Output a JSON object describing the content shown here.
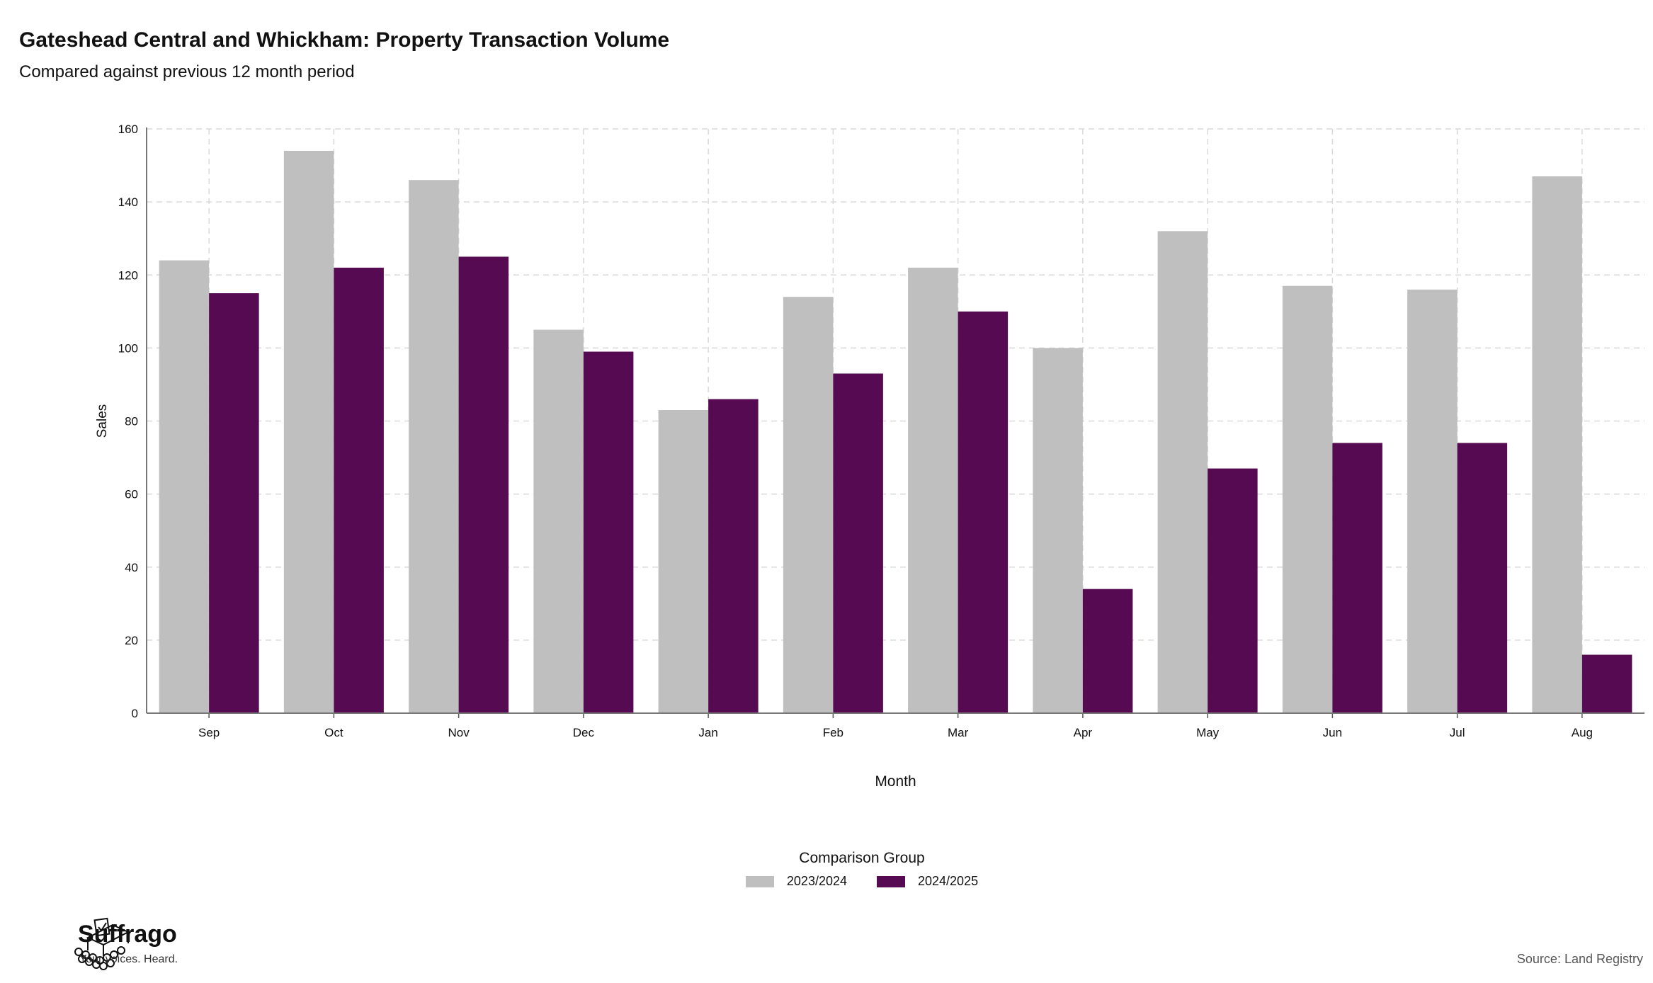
{
  "header": {
    "title": "Gateshead Central and Whickham: Property Transaction Volume",
    "subtitle": "Compared against previous 12 month period"
  },
  "chart_data": {
    "type": "bar",
    "title": "Gateshead Central and Whickham: Property Transaction Volume",
    "subtitle": "Compared against previous 12 month period",
    "xlabel": "Month",
    "ylabel": "Sales",
    "categories": [
      "Sep",
      "Oct",
      "Nov",
      "Dec",
      "Jan",
      "Feb",
      "Mar",
      "Apr",
      "May",
      "Jun",
      "Jul",
      "Aug"
    ],
    "series": [
      {
        "name": "2023/2024",
        "color": "#bfbfbf",
        "values": [
          124,
          154,
          146,
          105,
          83,
          114,
          122,
          100,
          132,
          117,
          116,
          147
        ]
      },
      {
        "name": "2024/2025",
        "color": "#550a52",
        "values": [
          115,
          122,
          125,
          99,
          86,
          93,
          110,
          34,
          67,
          74,
          74,
          16
        ]
      }
    ],
    "ylim": [
      0,
      160
    ],
    "yticks": [
      0,
      20,
      40,
      60,
      80,
      100,
      120,
      140,
      160
    ],
    "grid": true,
    "legend": {
      "title": "Comparison Group",
      "position": "bottom"
    }
  },
  "footer": {
    "brand_name": "Suffrago",
    "brand_tagline": "Your voices. Heard.",
    "source": "Source: Land Registry",
    "logo_icon": "ballot-box-icon"
  }
}
